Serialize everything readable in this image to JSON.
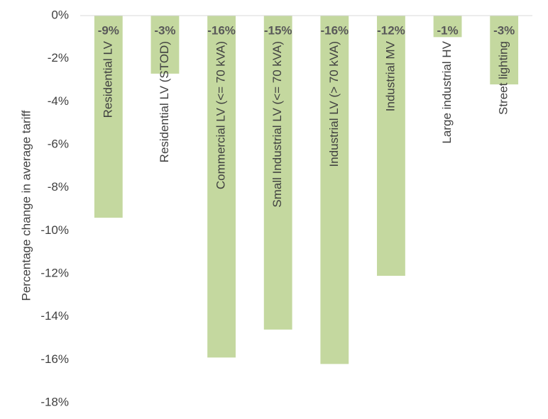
{
  "chart_data": {
    "type": "bar",
    "y_label": "Percentage change in average tariff",
    "categories": [
      "Residential LV",
      "Residential LV (STOD)",
      "Commercial LV (<= 70 kVA)",
      "Small Industrial LV (<= 70 kVA)",
      "Industrial LV (> 70 kVA)",
      "Industrial MV",
      "Large industrial HV",
      "Street lighting"
    ],
    "values": [
      -9.4,
      -2.7,
      -15.9,
      -14.6,
      -16.2,
      -12.1,
      -1.0,
      -3.2
    ],
    "value_labels": [
      "-9%",
      "-3%",
      "-16%",
      "-15%",
      "-16%",
      "-12%",
      "-1%",
      "-3%"
    ],
    "color": "#c4d89f",
    "ylim": [
      -18,
      0
    ],
    "yticks": [
      {
        "value": 0,
        "label": "0%"
      },
      {
        "value": -2,
        "label": "-2%"
      },
      {
        "value": -4,
        "label": "-4%"
      },
      {
        "value": -6,
        "label": "-6%"
      },
      {
        "value": -8,
        "label": "-8%"
      },
      {
        "value": -10,
        "label": "-10%"
      },
      {
        "value": -12,
        "label": "-12%"
      },
      {
        "value": -14,
        "label": "-14%"
      },
      {
        "value": -16,
        "label": "-16%"
      },
      {
        "value": -18,
        "label": "-18%"
      }
    ]
  }
}
